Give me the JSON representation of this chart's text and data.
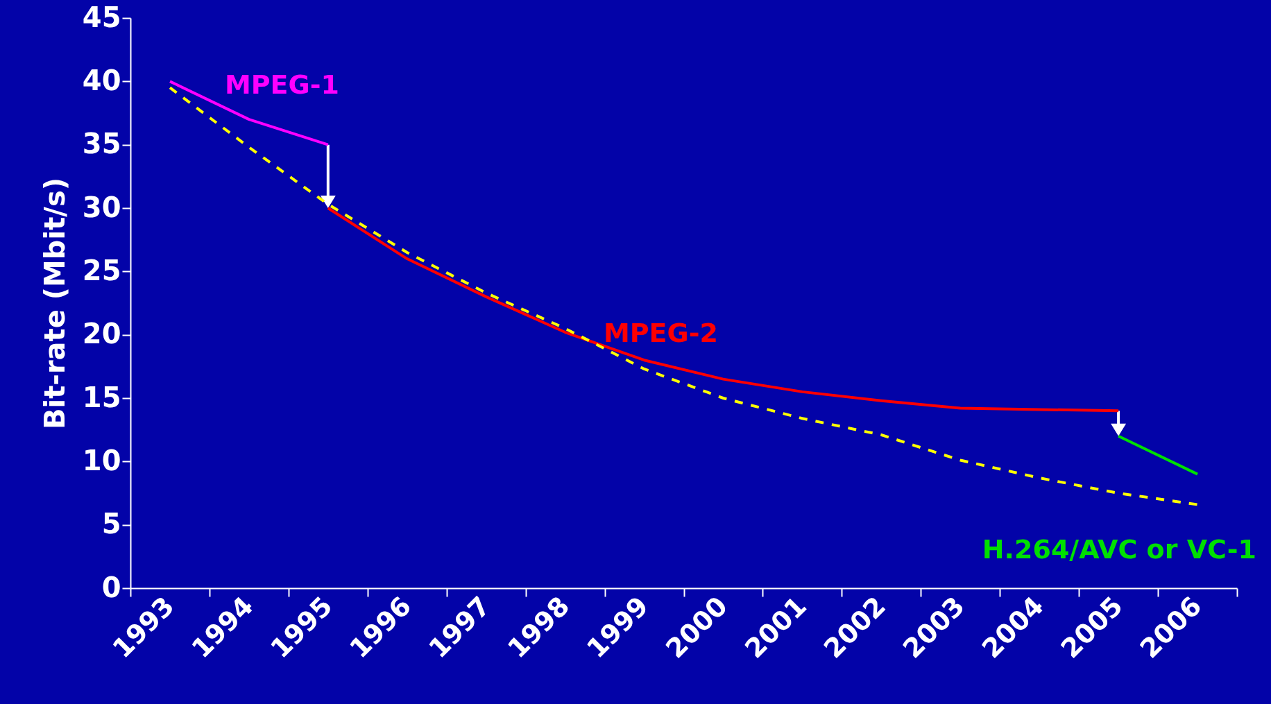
{
  "chart_data": {
    "type": "line",
    "ylabel": "Bit-rate (Mbit/s)",
    "categories": [
      "1993",
      "1994",
      "1995",
      "1996",
      "1997",
      "1998",
      "1999",
      "2000",
      "2001",
      "2002",
      "2003",
      "2004",
      "2005",
      "2006"
    ],
    "series": [
      {
        "name": "MPEG-1",
        "color": "#ff00ff",
        "values": [
          40,
          37,
          35,
          null,
          null,
          null,
          null,
          null,
          null,
          null,
          null,
          null,
          null,
          null
        ]
      },
      {
        "name": "MPEG-2",
        "color": "#ff0000",
        "values": [
          null,
          null,
          30,
          26,
          23,
          20.2,
          18,
          16.5,
          15.5,
          14.8,
          14.2,
          14.1,
          14,
          null
        ]
      },
      {
        "name": "H.264/AVC or VC-1",
        "color": "#00e000",
        "values": [
          null,
          null,
          null,
          null,
          null,
          null,
          null,
          null,
          null,
          null,
          null,
          null,
          12,
          9
        ]
      },
      {
        "color": "#ffff00",
        "line_style": "dashed",
        "values": [
          39.5,
          34.8,
          30.3,
          26.5,
          23.3,
          20.5,
          17.3,
          15,
          13.4,
          12.1,
          10.1,
          8.7,
          7.5,
          6.6
        ]
      }
    ],
    "ylim": [
      0,
      45
    ],
    "yticks": [
      0,
      5,
      10,
      15,
      20,
      25,
      30,
      35,
      40,
      45
    ]
  }
}
